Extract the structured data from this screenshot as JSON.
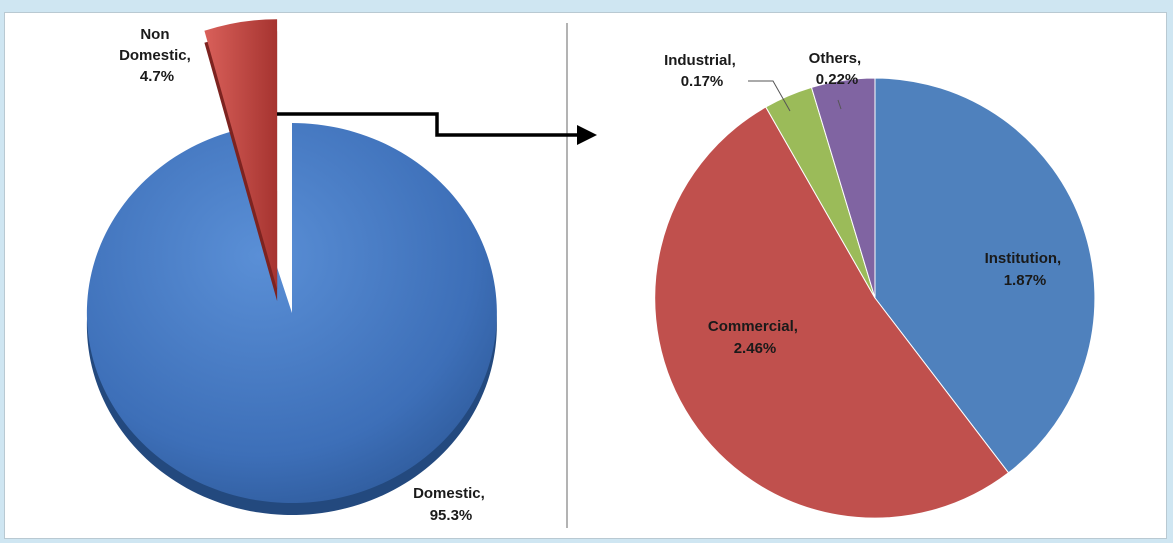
{
  "colors": {
    "domestic": "#3d6fb8",
    "domestic_dark": "#23497e",
    "non_domestic": "#c0403b",
    "non_domestic_dark": "#7d2320",
    "institution": "#4f81bd",
    "commercial": "#c0504d",
    "industrial": "#9bbb59",
    "others": "#8064a2",
    "connector": "#000000"
  },
  "chart_data": [
    {
      "type": "pie",
      "style": "3d-exploded",
      "categories": [
        "Domestic",
        "Non Domestic"
      ],
      "values": [
        95.3,
        4.7
      ],
      "labels": [
        {
          "line1": "Domestic,",
          "line2": "95.3%"
        },
        {
          "line1a": "Non",
          "line1b": "Domestic,",
          "line2": "4.7%"
        }
      ],
      "exploded": "Non Domestic"
    },
    {
      "type": "pie",
      "breakdown_of": "Non Domestic",
      "categories": [
        "Institution",
        "Commercial",
        "Industrial",
        "Others"
      ],
      "values": [
        1.87,
        2.46,
        0.17,
        0.22
      ],
      "labels": [
        {
          "line1": "Institution,",
          "line2": "1.87%"
        },
        {
          "line1": "Commercial,",
          "line2": "2.46%"
        },
        {
          "line1": "Industrial,",
          "line2": "0.17%"
        },
        {
          "line1": "Others,",
          "line2": "0.22%"
        }
      ]
    }
  ]
}
